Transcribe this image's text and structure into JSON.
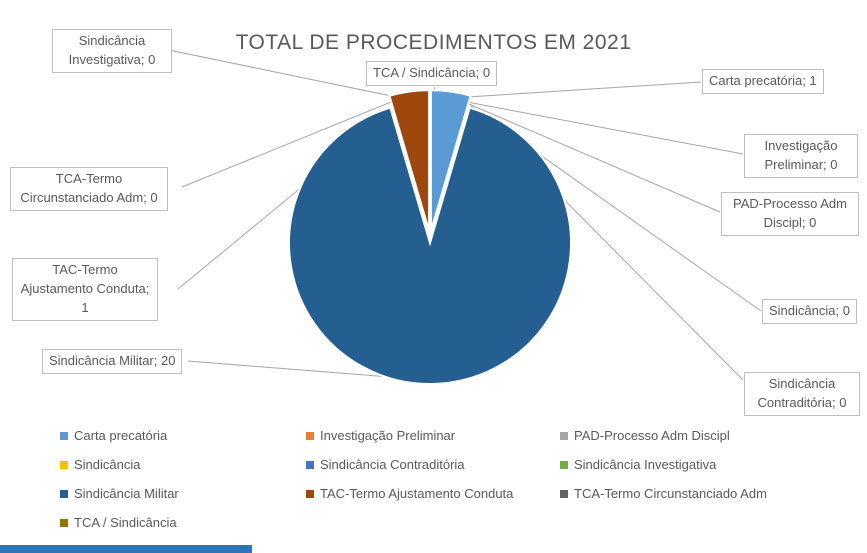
{
  "chart_data": {
    "type": "pie",
    "title": "TOTAL DE PROCEDIMENTOS EM 2021",
    "categories": [
      "Carta precatória",
      "Investigação Preliminar",
      "PAD-Processo Adm Discipl",
      "Sindicância",
      "Sindicância Contraditória",
      "Sindicância Investigativa",
      "Sindicância Militar",
      "TAC-Termo Ajustamento Conduta",
      "TCA-Termo Circunstanciado Adm",
      "TCA / Sindicância"
    ],
    "values": [
      1,
      0,
      0,
      0,
      0,
      0,
      20,
      1,
      0,
      0
    ],
    "colors": [
      "#5B9BD5",
      "#ED7D31",
      "#A5A5A5",
      "#FFC000",
      "#4472C4",
      "#70AD47",
      "#255E91",
      "#9E480E",
      "#636363",
      "#997300"
    ],
    "legend_position": "bottom",
    "data_labels": {
      "sindicancia_investigativa": "Sindicância Investigativa; 0",
      "tca_sindicancia": "TCA / Sindicância; 0",
      "carta_precatoria": "Carta precatória; 1",
      "investigacao_preliminar": "Investigação Preliminar; 0",
      "pad_processo": "PAD-Processo Adm Discipl; 0",
      "sindicancia": "Sindicância; 0",
      "sindicancia_contraditoria": "Sindicância Contraditória; 0",
      "tca_termo_circunstanciado": "TCA-Termo Circunstanciado Adm; 0",
      "tac_termo_ajustamento": "TAC-Termo Ajustamento Conduta; 1",
      "sindicancia_militar": "Sindicância Militar; 20"
    }
  },
  "decor": {
    "leader_line_color": "#A6A6A6",
    "bottom_bar_color": "#2E75B6"
  }
}
